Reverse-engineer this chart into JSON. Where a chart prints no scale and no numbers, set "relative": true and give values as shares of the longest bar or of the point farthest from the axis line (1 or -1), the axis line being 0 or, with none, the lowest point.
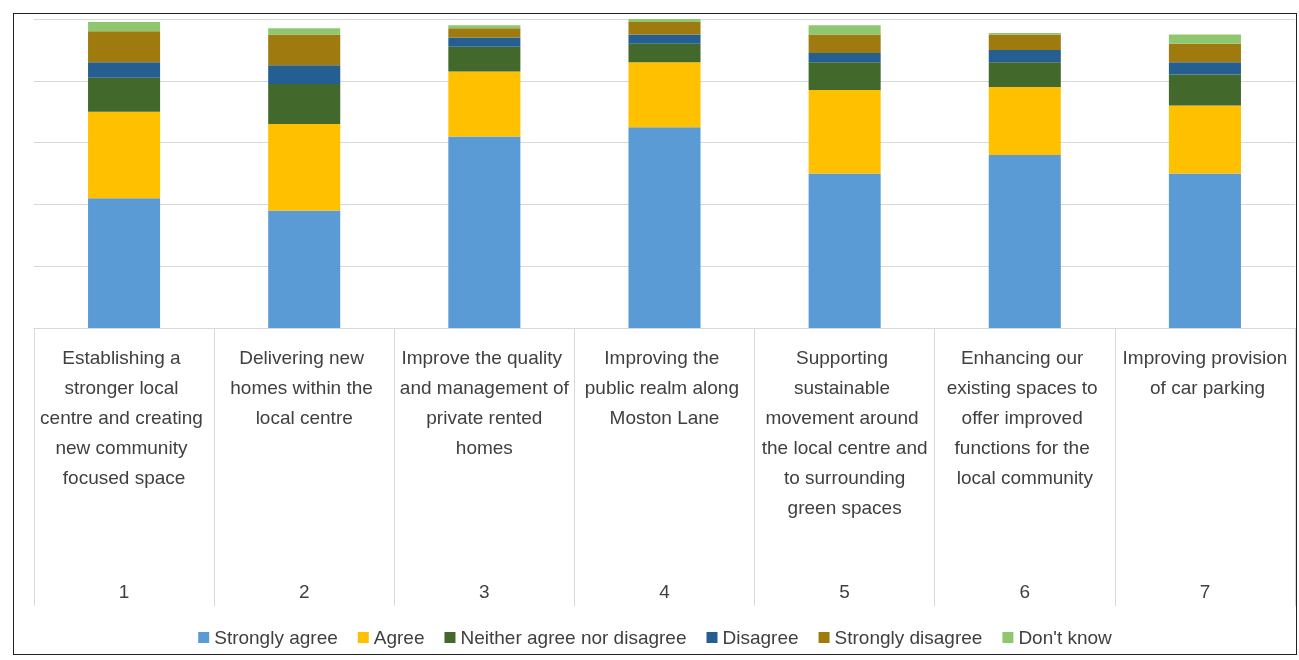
{
  "chart_data": {
    "type": "bar",
    "stacked": true,
    "relative": true,
    "grid": "y",
    "legend": "bottom",
    "categories": [
      "Establishing a stronger local centre and creating new community focused space",
      "Delivering new homes within the local centre",
      "Improve the quality and management of private rented homes",
      "Improving the public realm along Moston Lane",
      "Supporting sustainable movement around the local centre and to surrounding green spaces",
      "Enhancing our existing spaces to offer improved functions for the local community",
      "Improving provision of car parking"
    ],
    "annotations": [
      "1",
      "2",
      "3",
      "4",
      "5",
      "6",
      "7"
    ],
    "series": [
      {
        "name": "Strongly agree",
        "color": "#5b9bd5",
        "values": [
          0.42,
          0.38,
          0.62,
          0.65,
          0.5,
          0.56,
          0.5
        ]
      },
      {
        "name": "Agree",
        "color": "#ffc000",
        "values": [
          0.28,
          0.28,
          0.21,
          0.21,
          0.27,
          0.22,
          0.22
        ]
      },
      {
        "name": "Neither agree nor disagree",
        "color": "#43682b",
        "values": [
          0.11,
          0.13,
          0.08,
          0.06,
          0.09,
          0.08,
          0.1
        ]
      },
      {
        "name": "Disagree",
        "color": "#255e91",
        "values": [
          0.05,
          0.06,
          0.03,
          0.03,
          0.03,
          0.04,
          0.04
        ]
      },
      {
        "name": "Strongly disagree",
        "color": "#9e7a0f",
        "values": [
          0.1,
          0.1,
          0.03,
          0.04,
          0.06,
          0.05,
          0.06
        ]
      },
      {
        "name": "Don't know",
        "color": "#8fc771",
        "values": [
          0.03,
          0.02,
          0.01,
          0.01,
          0.03,
          0.005,
          0.03
        ]
      }
    ]
  }
}
